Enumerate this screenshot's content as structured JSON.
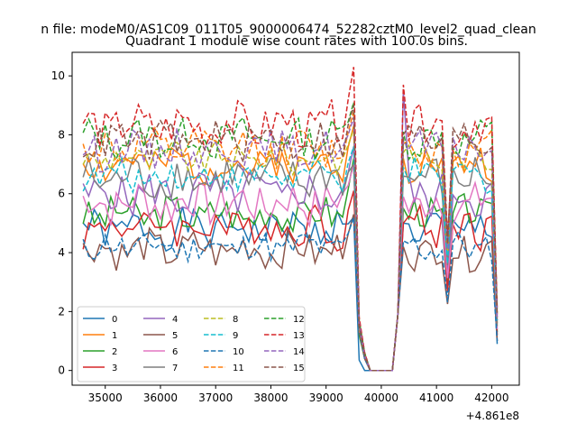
{
  "chart_data": {
    "type": "line",
    "suptitle": "n file: modeM0/AS1C09_011T05_9000006474_52282cztM0_level2_quad_clean",
    "title": "Quadrant 1 module wise count rates with 100.0s bins.",
    "xlabel": "",
    "ylabel": "",
    "x_offset_label": "+4.861e8",
    "xlim": [
      34400,
      42500
    ],
    "ylim": [
      -0.5,
      10.8
    ],
    "xticks": [
      35000,
      36000,
      37000,
      38000,
      39000,
      40000,
      41000,
      42000
    ],
    "xtick_labels": [
      "35000",
      "36000",
      "37000",
      "38000",
      "39000",
      "40000",
      "41000",
      "42000"
    ],
    "yticks": [
      0,
      2,
      4,
      6,
      8,
      10
    ],
    "ytick_labels": [
      "0",
      "2",
      "4",
      "6",
      "8",
      "10"
    ],
    "grid": false,
    "legend_position": "lower-left",
    "legend_columns": 4,
    "x_start": 34600,
    "x_step": 100,
    "n_points": 76,
    "gap_points": {
      "39600": [
        0.35,
        1.7,
        1.2,
        1.5,
        1.5,
        1.3,
        1.4,
        1.5,
        1.4,
        1.6,
        1.4,
        1.5,
        1.7,
        1.8,
        1.6,
        1.5
      ],
      "39700": [
        0.0,
        0.5,
        0.4,
        0.5,
        0.4,
        0.4,
        0.5,
        0.5,
        0.5,
        0.5,
        0.4,
        0.5,
        0.6,
        0.6,
        0.5,
        0.5
      ],
      "39800": [
        0,
        0,
        0,
        0,
        0,
        0,
        0,
        0,
        0,
        0,
        0,
        0,
        0,
        0,
        0,
        0
      ],
      "39900": [
        0,
        0,
        0,
        0,
        0,
        0,
        0,
        0,
        0,
        0,
        0,
        0,
        0,
        0,
        0,
        0
      ],
      "40000": [
        0,
        0,
        0,
        0,
        0,
        0,
        0,
        0,
        0,
        0,
        0,
        0,
        0,
        0,
        0,
        0
      ],
      "40100": [
        0,
        0,
        0,
        0,
        0,
        0,
        0,
        0,
        0,
        0,
        0,
        0,
        0,
        0,
        0,
        0
      ],
      "40200": [
        0,
        0,
        0,
        0,
        0,
        0,
        0,
        0,
        0,
        0,
        0,
        0,
        0,
        0,
        0,
        0
      ],
      "40300": [
        1.9,
        1.9,
        1.9,
        1.9,
        1.9,
        1.9,
        1.9,
        1.9,
        1.9,
        1.9,
        1.9,
        1.9,
        1.9,
        1.9,
        1.9,
        1.9
      ]
    },
    "series": [
      {
        "name": "0",
        "color": "#1f77b4",
        "dash": "solid",
        "mean": 4.8,
        "amp": 0.3,
        "seed": 1,
        "peak": 5.2,
        "post": 5.0,
        "end": 0.9
      },
      {
        "name": "1",
        "color": "#ff7f0e",
        "dash": "solid",
        "mean": 7.0,
        "amp": 0.3,
        "seed": 2,
        "peak": 8.3,
        "post": 7.2,
        "end": 1.6
      },
      {
        "name": "2",
        "color": "#2ca02c",
        "dash": "solid",
        "mean": 5.3,
        "amp": 0.3,
        "seed": 3,
        "peak": 7.2,
        "post": 5.5,
        "end": 1.3
      },
      {
        "name": "3",
        "color": "#d62728",
        "dash": "solid",
        "mean": 4.9,
        "amp": 0.35,
        "seed": 4,
        "peak": 6.1,
        "post": 5.0,
        "end": 1.2
      },
      {
        "name": "4",
        "color": "#9467bd",
        "dash": "solid",
        "mean": 6.0,
        "amp": 0.35,
        "seed": 5,
        "peak": 7.6,
        "post": 9.5,
        "end": 1.7
      },
      {
        "name": "5",
        "color": "#8c564b",
        "dash": "solid",
        "mean": 4.1,
        "amp": 0.3,
        "seed": 6,
        "peak": 5.3,
        "post": 4.2,
        "end": 1.0
      },
      {
        "name": "6",
        "color": "#e377c2",
        "dash": "solid",
        "mean": 5.7,
        "amp": 0.35,
        "seed": 7,
        "peak": 7.0,
        "post": 5.9,
        "end": 1.4
      },
      {
        "name": "7",
        "color": "#7f7f7f",
        "dash": "solid",
        "mean": 6.5,
        "amp": 0.35,
        "seed": 8,
        "peak": 7.0,
        "post": 6.6,
        "end": 1.5
      },
      {
        "name": "8",
        "color": "#bcbd22",
        "dash": "dashed",
        "mean": 7.2,
        "amp": 0.25,
        "seed": 9,
        "peak": 8.2,
        "post": 7.4,
        "end": 1.8
      },
      {
        "name": "9",
        "color": "#17becf",
        "dash": "dashed",
        "mean": 6.6,
        "amp": 0.25,
        "seed": 10,
        "peak": 7.6,
        "post": 6.9,
        "end": 1.7
      },
      {
        "name": "10",
        "color": "#1f77b4",
        "dash": "dashed",
        "mean": 4.2,
        "amp": 0.25,
        "seed": 11,
        "peak": 5.2,
        "post": 4.4,
        "end": 1.0
      },
      {
        "name": "11",
        "color": "#ff7f0e",
        "dash": "dashed",
        "mean": 7.5,
        "amp": 0.3,
        "seed": 12,
        "peak": 8.8,
        "post": 7.7,
        "end": 1.9
      },
      {
        "name": "12",
        "color": "#2ca02c",
        "dash": "dashed",
        "mean": 7.9,
        "amp": 0.3,
        "seed": 13,
        "peak": 9.1,
        "post": 8.1,
        "end": 2.0
      },
      {
        "name": "13",
        "color": "#d62728",
        "dash": "dashed",
        "mean": 8.3,
        "amp": 0.35,
        "seed": 14,
        "peak": 10.3,
        "post": 9.7,
        "end": 2.1
      },
      {
        "name": "14",
        "color": "#9467bd",
        "dash": "dashed",
        "mean": 7.5,
        "amp": 0.3,
        "seed": 15,
        "peak": 8.6,
        "post": 7.8,
        "end": 1.8
      },
      {
        "name": "15",
        "color": "#8c564b",
        "dash": "dashed",
        "mean": 7.8,
        "amp": 0.3,
        "seed": 16,
        "peak": 9.0,
        "post": 8.0,
        "end": 1.9
      }
    ]
  }
}
